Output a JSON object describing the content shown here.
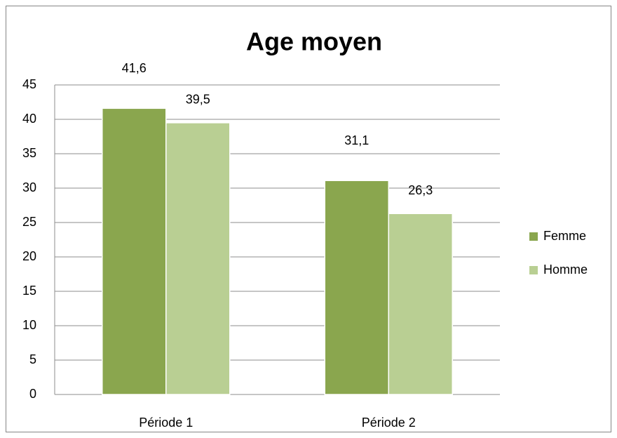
{
  "chart_data": {
    "type": "bar",
    "title": "Age moyen",
    "categories": [
      "Période 1",
      "Période 2"
    ],
    "series": [
      {
        "name": "Femme",
        "color": "#8aa64e",
        "values": [
          41.6,
          31.1
        ],
        "value_labels": [
          "41,6",
          "31,1"
        ]
      },
      {
        "name": "Homme",
        "color": "#b9cf93",
        "values": [
          39.5,
          26.3
        ],
        "value_labels": [
          "39,5",
          "26,3"
        ]
      }
    ],
    "ylim": [
      0,
      45
    ],
    "yticks": [
      0,
      5,
      10,
      15,
      20,
      25,
      30,
      35,
      40,
      45
    ],
    "grid": true,
    "legend": "right"
  }
}
